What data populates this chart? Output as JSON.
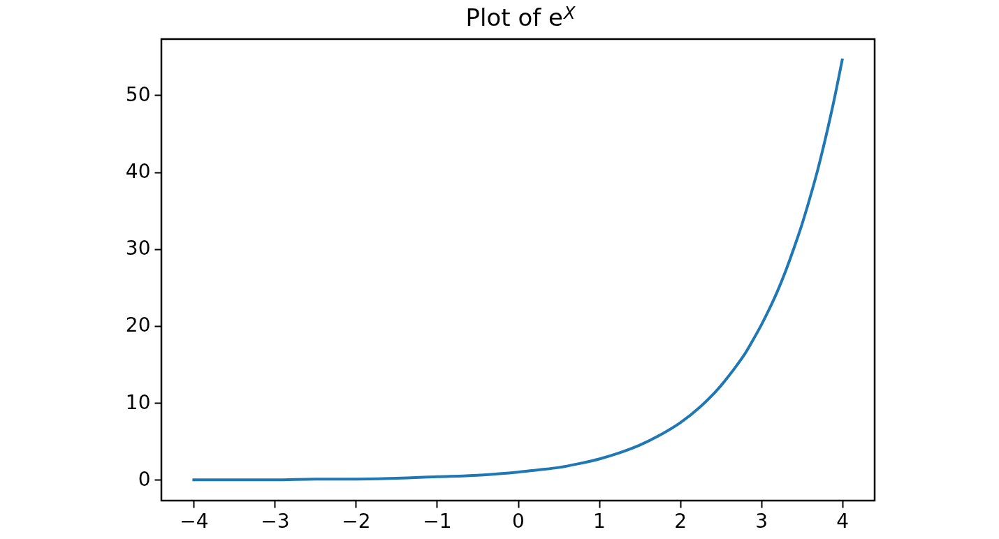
{
  "chart_data": {
    "type": "line",
    "title": "Plot of e$^{X}$",
    "x": [
      -4,
      -3.5,
      -3,
      -2.5,
      -2,
      -1.5,
      -1,
      -0.5,
      0,
      0.25,
      0.5,
      0.75,
      1,
      1.25,
      1.5,
      1.75,
      2,
      2.25,
      2.5,
      2.6,
      2.7,
      2.8,
      2.9,
      3,
      3.1,
      3.2,
      3.3,
      3.4,
      3.5,
      3.6,
      3.7,
      3.8,
      3.9,
      4
    ],
    "values": [
      0.0,
      0.0,
      0.0,
      0.1,
      0.1,
      0.2,
      0.4,
      0.6,
      1.0,
      1.3,
      1.6,
      2.1,
      2.7,
      3.5,
      4.5,
      5.8,
      7.4,
      9.5,
      12.2,
      13.5,
      14.9,
      16.4,
      18.2,
      20.1,
      22.2,
      24.5,
      27.1,
      30.0,
      33.1,
      36.6,
      40.4,
      44.7,
      49.4,
      54.6
    ],
    "color": "#1f77b4",
    "line_style": "solid",
    "xlim": [
      -4.4,
      4.4
    ],
    "ylim": [
      -2.7,
      57.3
    ],
    "xticks": [
      {
        "value": -4,
        "label": "−4"
      },
      {
        "value": -3,
        "label": "−3"
      },
      {
        "value": -2,
        "label": "−2"
      },
      {
        "value": -1,
        "label": "−1"
      },
      0,
      1,
      2,
      3,
      4
    ],
    "yticks": [
      0,
      10,
      20,
      30,
      40,
      50
    ]
  }
}
